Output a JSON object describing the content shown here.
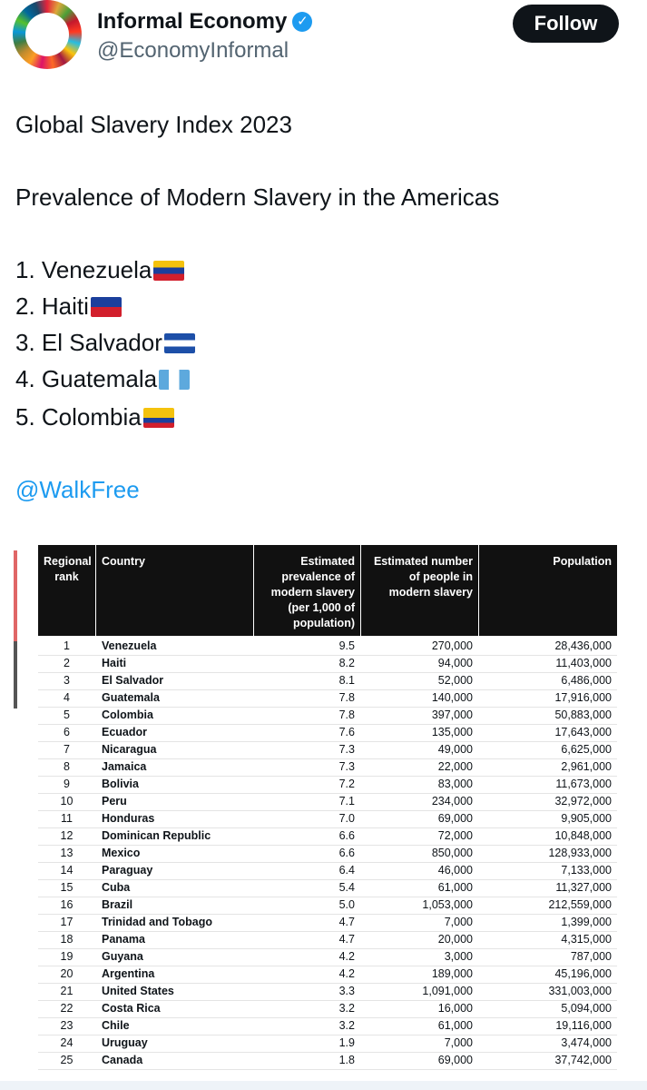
{
  "header": {
    "name": "Informal Economy",
    "handle": "@EconomyInformal",
    "follow": "Follow"
  },
  "tweet": {
    "title": "Global Slavery Index 2023",
    "subtitle": "Prevalence of Modern Slavery in the Americas",
    "list": [
      "1. Venezuela",
      "2. Haiti",
      "3. El Salvador",
      "4. Guatemala",
      "5. Colombia"
    ],
    "link": "@WalkFree"
  },
  "table": {
    "columns": [
      [
        "Regional",
        "rank"
      ],
      [
        "Country"
      ],
      [
        "Estimated",
        "prevalence of",
        "modern slavery",
        "(per 1,000 of",
        "population)"
      ],
      [
        "Estimated number",
        "of people in",
        "modern slavery"
      ],
      [
        "Population"
      ]
    ],
    "rows": [
      [
        "1",
        "Venezuela",
        "9.5",
        "270,000",
        "28,436,000"
      ],
      [
        "2",
        "Haiti",
        "8.2",
        "94,000",
        "11,403,000"
      ],
      [
        "3",
        "El Salvador",
        "8.1",
        "52,000",
        "6,486,000"
      ],
      [
        "4",
        "Guatemala",
        "7.8",
        "140,000",
        "17,916,000"
      ],
      [
        "5",
        "Colombia",
        "7.8",
        "397,000",
        "50,883,000"
      ],
      [
        "6",
        "Ecuador",
        "7.6",
        "135,000",
        "17,643,000"
      ],
      [
        "7",
        "Nicaragua",
        "7.3",
        "49,000",
        "6,625,000"
      ],
      [
        "8",
        "Jamaica",
        "7.3",
        "22,000",
        "2,961,000"
      ],
      [
        "9",
        "Bolivia",
        "7.2",
        "83,000",
        "11,673,000"
      ],
      [
        "10",
        "Peru",
        "7.1",
        "234,000",
        "32,972,000"
      ],
      [
        "11",
        "Honduras",
        "7.0",
        "69,000",
        "9,905,000"
      ],
      [
        "12",
        "Dominican Republic",
        "6.6",
        "72,000",
        "10,848,000"
      ],
      [
        "13",
        "Mexico",
        "6.6",
        "850,000",
        "128,933,000"
      ],
      [
        "14",
        "Paraguay",
        "6.4",
        "46,000",
        "7,133,000"
      ],
      [
        "15",
        "Cuba",
        "5.4",
        "61,000",
        "11,327,000"
      ],
      [
        "16",
        "Brazil",
        "5.0",
        "1,053,000",
        "212,559,000"
      ],
      [
        "17",
        "Trinidad and Tobago",
        "4.7",
        "7,000",
        "1,399,000"
      ],
      [
        "18",
        "Panama",
        "4.7",
        "20,000",
        "4,315,000"
      ],
      [
        "19",
        "Guyana",
        "4.2",
        "3,000",
        "787,000"
      ],
      [
        "20",
        "Argentina",
        "4.2",
        "189,000",
        "45,196,000"
      ],
      [
        "21",
        "United States",
        "3.3",
        "1,091,000",
        "331,003,000"
      ],
      [
        "22",
        "Costa Rica",
        "3.2",
        "16,000",
        "5,094,000"
      ],
      [
        "23",
        "Chile",
        "3.2",
        "61,000",
        "19,116,000"
      ],
      [
        "24",
        "Uruguay",
        "1.9",
        "7,000",
        "3,474,000"
      ],
      [
        "25",
        "Canada",
        "1.8",
        "69,000",
        "37,742,000"
      ]
    ]
  }
}
